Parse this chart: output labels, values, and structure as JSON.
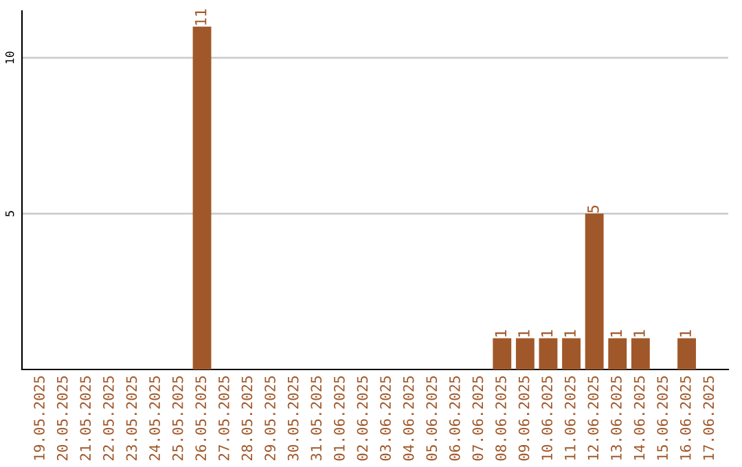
{
  "chart_data": {
    "type": "bar",
    "categories": [
      "19.05.2025",
      "20.05.2025",
      "21.05.2025",
      "22.05.2025",
      "23.05.2025",
      "24.05.2025",
      "25.05.2025",
      "26.05.2025",
      "27.05.2025",
      "28.05.2025",
      "29.05.2025",
      "30.05.2025",
      "31.05.2025",
      "01.06.2025",
      "02.06.2025",
      "03.06.2025",
      "04.06.2025",
      "05.06.2025",
      "06.06.2025",
      "07.06.2025",
      "08.06.2025",
      "09.06.2025",
      "10.06.2025",
      "11.06.2025",
      "12.06.2025",
      "13.06.2025",
      "14.06.2025",
      "15.06.2025",
      "16.06.2025",
      "17.06.2025"
    ],
    "values": [
      0,
      0,
      0,
      0,
      0,
      0,
      0,
      11,
      0,
      0,
      0,
      0,
      0,
      0,
      0,
      0,
      0,
      0,
      0,
      0,
      1,
      1,
      1,
      1,
      5,
      1,
      1,
      0,
      1,
      0
    ],
    "value_labels": [
      null,
      null,
      null,
      null,
      null,
      null,
      null,
      "11",
      null,
      null,
      null,
      null,
      null,
      null,
      null,
      null,
      null,
      null,
      null,
      null,
      "1",
      "1",
      "1",
      "1",
      "5",
      "1",
      "1",
      null,
      "1",
      null
    ],
    "color": "#a0582a",
    "ylim": [
      0,
      11.5
    ],
    "yticks": [
      5,
      10
    ],
    "grid": "y",
    "legend": false
  }
}
